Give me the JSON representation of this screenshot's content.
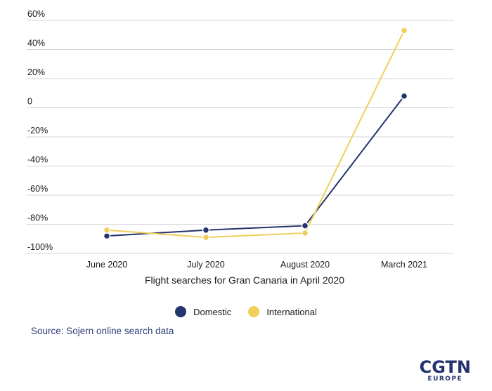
{
  "chart_data": {
    "type": "line",
    "categories": [
      "June 2020",
      "July 2020",
      "August 2020",
      "March 2021"
    ],
    "series": [
      {
        "name": "Domestic",
        "color": "#23346e",
        "values": [
          -88,
          -84,
          -81,
          8
        ]
      },
      {
        "name": "International",
        "color": "#f0cf5a",
        "values": [
          -84,
          -89,
          -86,
          53
        ]
      }
    ],
    "yticks": [
      {
        "value": 60,
        "label": "60%"
      },
      {
        "value": 40,
        "label": "40%"
      },
      {
        "value": 20,
        "label": "20%"
      },
      {
        "value": 0,
        "label": "0"
      },
      {
        "value": -20,
        "label": "-20%"
      },
      {
        "value": -40,
        "label": "-40%"
      },
      {
        "value": -60,
        "label": "-60%"
      },
      {
        "value": -80,
        "label": "-80%"
      },
      {
        "value": -100,
        "label": "-100%"
      }
    ],
    "ylim": [
      -100,
      60
    ],
    "xlabel": "Flight searches for Gran Canaria in April 2020",
    "ylabel": "",
    "grid": true,
    "legend_position": "bottom-center"
  },
  "source": "Source: Sojern online search data",
  "logo": {
    "main": "CGTN",
    "sub": "EUROPE"
  }
}
